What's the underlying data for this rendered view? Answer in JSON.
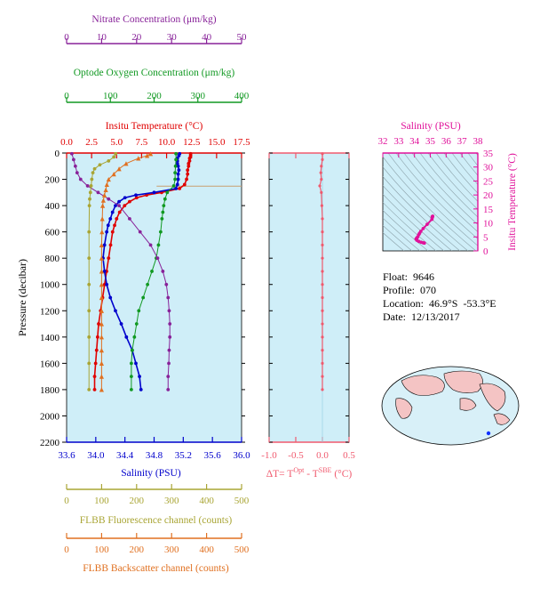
{
  "colors": {
    "temperature": "#e00000",
    "salinity": "#0000cc",
    "oxygen": "#119922",
    "nitrate": "#882299",
    "fluorescence": "#a9a534",
    "backscatter": "#e07020",
    "delta_t": "#f05a6e",
    "salinity_inset": "#e0119a",
    "plot_bg": "#cfeef8"
  },
  "labels": {
    "nitrate_title": "Nitrate Concentration (μm/kg)",
    "oxygen_title": "Optode Oxygen Concentration (μm/kg)",
    "temperature_title": "Insitu Temperature (°C)",
    "pressure_title": "Pressure (decibar)",
    "salinity_title": "Salinity (PSU)",
    "inset_salinity_title": "Salinity (PSU)",
    "inset_temperature_title": "Insitu Temperature (°C)",
    "delta_prefix": "ΔT= T",
    "delta_sup1": "Opt",
    "delta_mid": " - T",
    "delta_sup2": "SBE",
    "delta_suffix": " (°C)",
    "fluorescence_title": "FLBB Fluorescence channel (counts)",
    "backscatter_title": "FLBB Backscatter channel (counts)"
  },
  "info": {
    "float": "Float:  9646",
    "profile": "Profile:  070",
    "location": "Location:  46.9°S  -53.3°E",
    "date": "Date:  12/13/2017"
  },
  "chart_data": [
    {
      "type": "line",
      "name": "main-profile",
      "ylabel": "Pressure (decibar)",
      "ylim": [
        2200,
        0
      ],
      "yticks": [
        "0",
        "200",
        "400",
        "600",
        "800",
        "1000",
        "1200",
        "1400",
        "1600",
        "1800",
        "2000",
        "2200"
      ],
      "axes": {
        "nitrate": {
          "label": "Nitrate Concentration (μm/kg)",
          "range": [
            0,
            50
          ],
          "ticks": [
            "0",
            "10",
            "20",
            "30",
            "40",
            "50"
          ]
        },
        "oxygen": {
          "label": "Optode Oxygen Concentration (μm/kg)",
          "range": [
            0,
            400
          ],
          "ticks": [
            "0",
            "100",
            "200",
            "300",
            "400"
          ]
        },
        "temperature": {
          "label": "Insitu Temperature (°C)",
          "range": [
            0,
            17.5
          ],
          "ticks": [
            "0.0",
            "2.5",
            "5.0",
            "7.5",
            "10.0",
            "12.5",
            "15.0",
            "17.5"
          ]
        },
        "salinity": {
          "label": "Salinity (PSU)",
          "range": [
            33.6,
            36.0
          ],
          "ticks": [
            "33.6",
            "34.0",
            "34.4",
            "34.8",
            "35.2",
            "35.6",
            "36.0"
          ]
        },
        "fluorescence": {
          "label": "FLBB Fluorescence channel (counts)",
          "range": [
            0,
            500
          ],
          "ticks": [
            "0",
            "100",
            "200",
            "300",
            "400",
            "500"
          ]
        },
        "backscatter": {
          "label": "FLBB Backscatter channel (counts)",
          "range": [
            0,
            500
          ],
          "ticks": [
            "0",
            "100",
            "200",
            "300",
            "400",
            "500"
          ]
        }
      },
      "series": [
        {
          "key": "temperature",
          "axis": "temperature",
          "marker": "circle",
          "points": [
            [
              12.4,
              5
            ],
            [
              12.4,
              20
            ],
            [
              12.3,
              40
            ],
            [
              12.3,
              60
            ],
            [
              12.2,
              80
            ],
            [
              12.2,
              100
            ],
            [
              12.1,
              130
            ],
            [
              12.1,
              160
            ],
            [
              12.0,
              200
            ],
            [
              11.8,
              240
            ],
            [
              11.3,
              270
            ],
            [
              9.5,
              300
            ],
            [
              8.0,
              320
            ],
            [
              7.0,
              340
            ],
            [
              6.3,
              370
            ],
            [
              5.8,
              400
            ],
            [
              5.3,
              450
            ],
            [
              5.0,
              500
            ],
            [
              4.8,
              550
            ],
            [
              4.6,
              600
            ],
            [
              4.4,
              700
            ],
            [
              4.2,
              800
            ],
            [
              4.0,
              900
            ],
            [
              3.8,
              1000
            ],
            [
              3.6,
              1100
            ],
            [
              3.4,
              1200
            ],
            [
              3.2,
              1300
            ],
            [
              3.1,
              1400
            ],
            [
              3.0,
              1500
            ],
            [
              2.9,
              1600
            ],
            [
              2.8,
              1700
            ],
            [
              2.8,
              1800
            ]
          ]
        },
        {
          "key": "salinity",
          "axis": "salinity",
          "marker": "circle",
          "points": [
            [
              35.15,
              5
            ],
            [
              35.14,
              20
            ],
            [
              35.12,
              40
            ],
            [
              35.12,
              60
            ],
            [
              35.12,
              80
            ],
            [
              35.13,
              100
            ],
            [
              35.14,
              130
            ],
            [
              35.13,
              160
            ],
            [
              35.13,
              200
            ],
            [
              35.12,
              240
            ],
            [
              35.1,
              270
            ],
            [
              34.8,
              300
            ],
            [
              34.55,
              320
            ],
            [
              34.4,
              340
            ],
            [
              34.32,
              370
            ],
            [
              34.27,
              400
            ],
            [
              34.23,
              450
            ],
            [
              34.2,
              500
            ],
            [
              34.17,
              550
            ],
            [
              34.15,
              600
            ],
            [
              34.12,
              700
            ],
            [
              34.1,
              800
            ],
            [
              34.12,
              900
            ],
            [
              34.15,
              1000
            ],
            [
              34.2,
              1100
            ],
            [
              34.27,
              1200
            ],
            [
              34.35,
              1300
            ],
            [
              34.42,
              1400
            ],
            [
              34.5,
              1500
            ],
            [
              34.55,
              1600
            ],
            [
              34.6,
              1700
            ],
            [
              34.62,
              1800
            ]
          ]
        },
        {
          "key": "oxygen",
          "axis": "oxygen",
          "marker": "circle",
          "points": [
            [
              250,
              5
            ],
            [
              250,
              50
            ],
            [
              249,
              100
            ],
            [
              248,
              150
            ],
            [
              248,
              200
            ],
            [
              245,
              250
            ],
            [
              230,
              300
            ],
            [
              225,
              350
            ],
            [
              222,
              400
            ],
            [
              220,
              450
            ],
            [
              218,
              500
            ],
            [
              215,
              600
            ],
            [
              210,
              700
            ],
            [
              205,
              800
            ],
            [
              195,
              900
            ],
            [
              185,
              1000
            ],
            [
              175,
              1100
            ],
            [
              165,
              1200
            ],
            [
              160,
              1300
            ],
            [
              155,
              1400
            ],
            [
              150,
              1500
            ],
            [
              148,
              1600
            ],
            [
              148,
              1700
            ],
            [
              148,
              1800
            ]
          ]
        },
        {
          "key": "nitrate",
          "axis": "nitrate",
          "marker": "circle",
          "points": [
            [
              1.5,
              5
            ],
            [
              2.0,
              50
            ],
            [
              2.5,
              100
            ],
            [
              3.0,
              150
            ],
            [
              4.0,
              200
            ],
            [
              6.0,
              250
            ],
            [
              9.0,
              300
            ],
            [
              12.0,
              350
            ],
            [
              15.0,
              400
            ],
            [
              18.0,
              500
            ],
            [
              21.0,
              600
            ],
            [
              24.0,
              700
            ],
            [
              26.0,
              800
            ],
            [
              27.5,
              900
            ],
            [
              28.5,
              1000
            ],
            [
              29.0,
              1100
            ],
            [
              29.3,
              1200
            ],
            [
              29.5,
              1300
            ],
            [
              29.5,
              1400
            ],
            [
              29.3,
              1500
            ],
            [
              29.2,
              1600
            ],
            [
              29.0,
              1700
            ],
            [
              29.0,
              1800
            ]
          ]
        },
        {
          "key": "fluorescence",
          "axis": "fluorescence",
          "marker": "circle",
          "points": [
            [
              140,
              5
            ],
            [
              135,
              30
            ],
            [
              120,
              60
            ],
            [
              95,
              90
            ],
            [
              80,
              120
            ],
            [
              75,
              150
            ],
            [
              72,
              200
            ],
            [
              70,
              250
            ],
            [
              68,
              300
            ],
            [
              66,
              350
            ],
            [
              65,
              400
            ],
            [
              64,
              600
            ],
            [
              64,
              800
            ],
            [
              64,
              1000
            ],
            [
              64,
              1200
            ],
            [
              64,
              1400
            ],
            [
              64,
              1600
            ],
            [
              64,
              1800
            ]
          ]
        },
        {
          "key": "backscatter",
          "axis": "backscatter",
          "marker": "triangle",
          "points": [
            [
              240,
              5
            ],
            [
              230,
              20
            ],
            [
              205,
              40
            ],
            [
              170,
              80
            ],
            [
              150,
              120
            ],
            [
              135,
              160
            ],
            [
              120,
              200
            ],
            [
              115,
              240
            ],
            [
              112,
              280
            ],
            [
              108,
              320
            ],
            [
              105,
              360
            ],
            [
              103,
              400
            ],
            [
              102,
              500
            ],
            [
              101,
              600
            ],
            [
              100,
              700
            ],
            [
              100,
              800
            ],
            [
              100,
              900
            ],
            [
              100,
              1000
            ],
            [
              100,
              1100
            ],
            [
              100,
              1200
            ],
            [
              100,
              1300
            ],
            [
              100,
              1400
            ],
            [
              100,
              1500
            ],
            [
              100,
              1600
            ],
            [
              100,
              1700
            ],
            [
              100,
              1800
            ]
          ]
        }
      ]
    },
    {
      "type": "scatter",
      "name": "delta-t",
      "xlabel": "ΔT= T^Opt - T^SBE (°C)",
      "xlim": [
        -1.0,
        0.5
      ],
      "xticks": [
        "-1.0",
        "-0.5",
        "0.0",
        "0.5"
      ],
      "ylim": [
        2200,
        0
      ],
      "points": [
        [
          0.0,
          5
        ],
        [
          0.0,
          50
        ],
        [
          -0.02,
          100
        ],
        [
          -0.03,
          150
        ],
        [
          -0.02,
          200
        ],
        [
          -0.05,
          250
        ],
        [
          -0.02,
          300
        ],
        [
          -0.01,
          400
        ],
        [
          0.0,
          500
        ],
        [
          0.0,
          600
        ],
        [
          0.0,
          700
        ],
        [
          0.0,
          800
        ],
        [
          0.0,
          900
        ],
        [
          0.0,
          1000
        ],
        [
          0.0,
          1100
        ],
        [
          0.0,
          1200
        ],
        [
          0.0,
          1300
        ],
        [
          0.0,
          1400
        ],
        [
          0.0,
          1500
        ],
        [
          0.0,
          1600
        ],
        [
          0.0,
          1700
        ],
        [
          0.0,
          1800
        ]
      ]
    },
    {
      "type": "scatter",
      "name": "ts-diagram",
      "xlabel": "Salinity (PSU)",
      "ylabel": "Insitu Temperature (°C)",
      "xlim": [
        32,
        38
      ],
      "ylim": [
        0,
        35
      ],
      "xticks": [
        "32",
        "33",
        "34",
        "35",
        "36",
        "37",
        "38"
      ],
      "yticks": [
        "0",
        "5",
        "10",
        "15",
        "20",
        "25",
        "30",
        "35"
      ],
      "points": [
        [
          35.15,
          12.4
        ],
        [
          35.12,
          12.2
        ],
        [
          35.13,
          12.0
        ],
        [
          35.1,
          11.3
        ],
        [
          34.8,
          9.5
        ],
        [
          34.55,
          8.0
        ],
        [
          34.4,
          7.0
        ],
        [
          34.32,
          6.3
        ],
        [
          34.27,
          5.8
        ],
        [
          34.2,
          5.0
        ],
        [
          34.15,
          4.6
        ],
        [
          34.12,
          4.4
        ],
        [
          34.1,
          4.2
        ],
        [
          34.15,
          3.8
        ],
        [
          34.27,
          3.4
        ],
        [
          34.42,
          3.1
        ],
        [
          34.55,
          2.9
        ],
        [
          34.62,
          2.8
        ]
      ]
    }
  ]
}
